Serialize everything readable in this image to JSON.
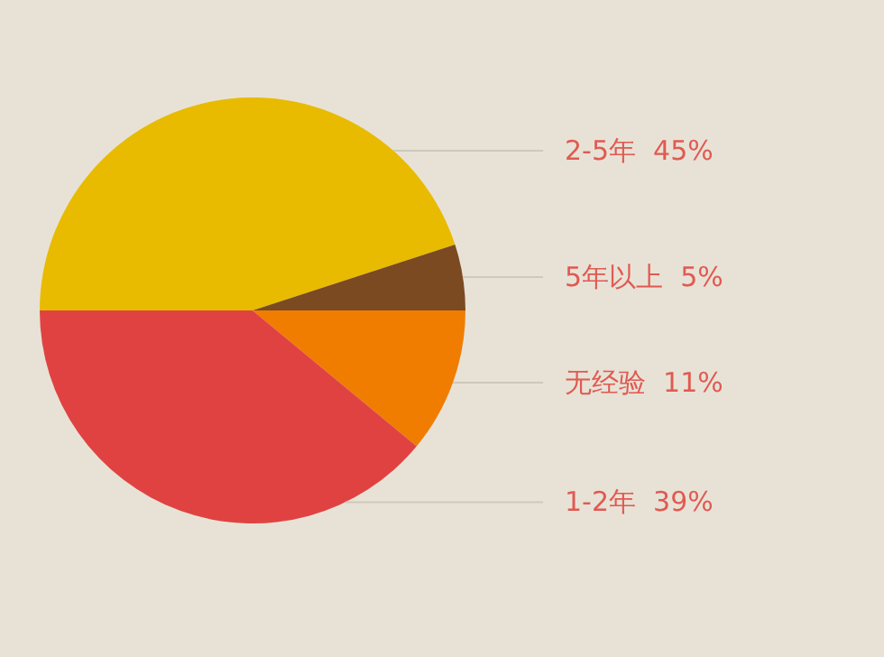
{
  "chart_data": {
    "type": "pie",
    "categories": [
      "2-5年",
      "5年以上",
      "无经验",
      "1-2年"
    ],
    "values": [
      45,
      5,
      11,
      39
    ],
    "value_labels": [
      "45%",
      "5%",
      "11%",
      "39%"
    ],
    "colors": [
      "#e8bb00",
      "#7b4a20",
      "#f07d00",
      "#e04242"
    ]
  }
}
